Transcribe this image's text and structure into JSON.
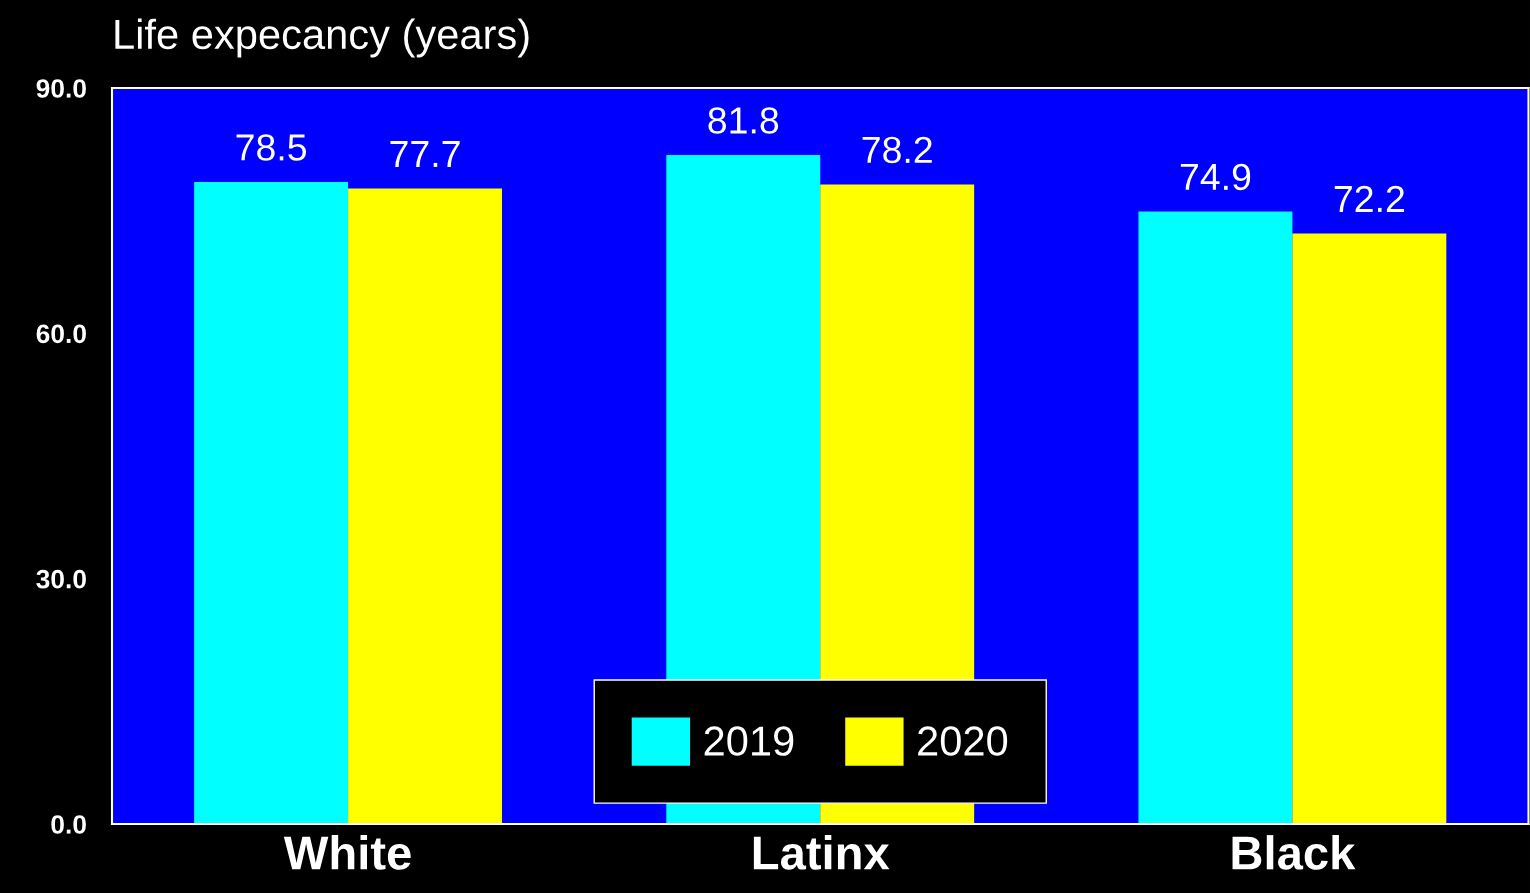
{
  "chart_data": {
    "type": "bar",
    "title": "Life expecancy (years)",
    "categories": [
      "White",
      "Latinx",
      "Black"
    ],
    "series": [
      {
        "name": "2019",
        "color": "#00ffff",
        "values": [
          78.5,
          81.8,
          74.9
        ]
      },
      {
        "name": "2020",
        "color": "#ffff00",
        "values": [
          77.7,
          78.2,
          72.2
        ]
      }
    ],
    "ylim": [
      0,
      90
    ],
    "yticks": [
      {
        "value": 0,
        "label": "0.0"
      },
      {
        "value": 30,
        "label": "30.0"
      },
      {
        "value": 60,
        "label": "60.0"
      },
      {
        "value": 90,
        "label": "90.0"
      }
    ],
    "data_labels": true,
    "legend": "bottom",
    "grid": false
  }
}
